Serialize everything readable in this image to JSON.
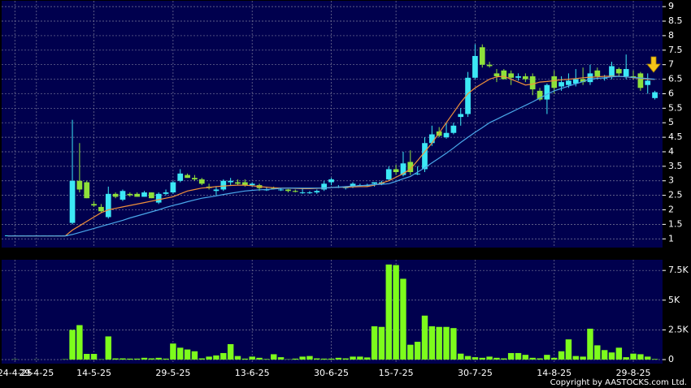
{
  "chart_data": [
    {
      "type": "candlestick",
      "categories": [
        null,
        "24-4-25",
        null,
        null,
        "29-4-25",
        null,
        null,
        null,
        null,
        null,
        null,
        null,
        "14-5-25",
        null,
        null,
        null,
        null,
        null,
        null,
        null,
        null,
        null,
        null,
        "29-5-25",
        null,
        null,
        null,
        null,
        null,
        null,
        null,
        null,
        null,
        null,
        "13-6-25",
        null,
        null,
        null,
        null,
        null,
        null,
        null,
        null,
        null,
        null,
        "30-6-25",
        null,
        null,
        null,
        null,
        null,
        null,
        null,
        null,
        "15-7-25",
        null,
        null,
        null,
        null,
        null,
        null,
        null,
        null,
        null,
        null,
        "30-7-25",
        null,
        null,
        null,
        null,
        null,
        null,
        null,
        null,
        null,
        null,
        "14-8-25",
        null,
        null,
        null,
        null,
        null,
        null,
        null,
        null,
        null,
        null,
        "29-8-25",
        null,
        null,
        null
      ],
      "open": [
        1.12,
        1.12,
        1.12,
        1.12,
        1.12,
        1.12,
        1.12,
        1.12,
        1.12,
        1.55,
        3.0,
        2.95,
        2.2,
        2.1,
        1.75,
        2.55,
        2.35,
        2.55,
        2.55,
        2.45,
        2.6,
        2.25,
        2.55,
        2.6,
        3.0,
        3.2,
        3.1,
        3.05,
        2.8,
        2.65,
        2.7,
        2.95,
        2.95,
        2.95,
        2.85,
        2.85,
        2.7,
        2.75,
        2.7,
        2.7,
        2.65,
        2.6,
        2.6,
        2.6,
        2.7,
        2.95,
        2.8,
        2.75,
        2.8,
        2.85,
        2.85,
        2.9,
        2.9,
        3.05,
        3.4,
        3.2,
        3.65,
        3.25,
        3.4,
        4.3,
        4.7,
        4.5,
        4.65,
        5.2,
        5.3,
        6.55,
        7.6,
        7.0,
        6.7,
        6.8,
        6.7,
        6.55,
        6.6,
        6.6,
        6.1,
        5.8,
        6.6,
        6.25,
        6.3,
        6.35,
        6.5,
        6.4,
        6.8,
        6.55,
        6.6,
        6.85,
        6.6,
        6.6,
        6.7,
        6.3,
        5.85
      ],
      "high": [
        1.12,
        1.12,
        1.12,
        1.12,
        1.12,
        1.12,
        1.12,
        1.12,
        1.12,
        5.1,
        4.3,
        3.0,
        2.3,
        2.2,
        2.8,
        2.6,
        2.7,
        2.6,
        2.6,
        2.65,
        2.6,
        2.6,
        2.7,
        3.0,
        3.4,
        3.25,
        3.2,
        3.1,
        2.9,
        2.8,
        3.05,
        3.1,
        3.05,
        3.05,
        2.95,
        2.9,
        2.8,
        2.8,
        2.75,
        2.72,
        2.7,
        2.75,
        2.65,
        2.7,
        3.0,
        3.1,
        2.85,
        2.8,
        2.95,
        2.9,
        2.9,
        2.95,
        3.0,
        3.5,
        3.55,
        4.0,
        4.05,
        3.5,
        4.5,
        4.9,
        4.85,
        5.0,
        5.0,
        5.5,
        6.75,
        7.7,
        7.7,
        7.1,
        6.85,
        6.85,
        6.8,
        6.7,
        6.7,
        6.7,
        6.2,
        6.35,
        6.8,
        6.6,
        6.7,
        6.85,
        6.9,
        7.0,
        6.9,
        6.65,
        7.1,
        6.9,
        7.35,
        6.8,
        6.75,
        6.7,
        6.1
      ],
      "low": [
        1.12,
        1.12,
        1.12,
        1.12,
        1.12,
        1.12,
        1.12,
        1.12,
        1.12,
        1.5,
        2.6,
        2.4,
        2.1,
        1.9,
        1.7,
        2.4,
        2.3,
        2.45,
        2.45,
        2.45,
        2.4,
        2.2,
        2.5,
        2.55,
        2.95,
        3.1,
        3.0,
        2.85,
        2.7,
        2.5,
        2.65,
        2.85,
        2.85,
        2.8,
        2.8,
        2.65,
        2.65,
        2.7,
        2.65,
        2.6,
        2.6,
        2.55,
        2.55,
        2.55,
        2.65,
        2.85,
        2.75,
        2.7,
        2.75,
        2.8,
        2.8,
        2.8,
        2.85,
        3.0,
        3.2,
        3.15,
        3.2,
        3.2,
        3.3,
        4.2,
        4.5,
        4.45,
        4.6,
        4.9,
        5.2,
        6.5,
        6.9,
        6.9,
        6.4,
        6.5,
        6.3,
        6.45,
        6.4,
        5.95,
        5.75,
        5.3,
        6.0,
        6.1,
        6.2,
        6.25,
        6.3,
        6.3,
        6.5,
        6.45,
        6.5,
        6.6,
        6.5,
        6.5,
        6.1,
        6.0,
        5.8
      ],
      "close": [
        1.12,
        1.12,
        1.12,
        1.12,
        1.12,
        1.12,
        1.12,
        1.12,
        1.12,
        3.0,
        2.7,
        2.4,
        2.15,
        1.95,
        2.55,
        2.45,
        2.65,
        2.5,
        2.45,
        2.6,
        2.4,
        2.55,
        2.6,
        2.95,
        3.25,
        3.1,
        3.05,
        2.9,
        2.75,
        2.7,
        3.0,
        3.0,
        2.9,
        2.85,
        2.9,
        2.75,
        2.7,
        2.72,
        2.7,
        2.65,
        2.62,
        2.6,
        2.6,
        2.65,
        2.9,
        3.05,
        2.8,
        2.8,
        2.9,
        2.85,
        2.85,
        2.95,
        2.95,
        3.4,
        3.3,
        3.6,
        3.3,
        3.25,
        4.3,
        4.6,
        4.55,
        4.65,
        4.9,
        5.3,
        6.55,
        7.3,
        7.0,
        6.95,
        6.6,
        6.5,
        6.55,
        6.6,
        6.5,
        6.15,
        5.8,
        6.3,
        6.2,
        6.4,
        6.45,
        6.5,
        6.4,
        6.7,
        6.6,
        6.55,
        6.95,
        6.7,
        6.85,
        6.55,
        6.2,
        6.45,
        6.05
      ],
      "up_color": "#3ce8f5",
      "down_color": "#8fe03a",
      "series": [
        {
          "color": "#f0903a",
          "values": [
            1.1,
            1.1,
            1.1,
            1.1,
            1.1,
            1.1,
            1.1,
            1.1,
            1.1,
            1.3,
            1.45,
            1.6,
            1.75,
            1.9,
            2.0,
            2.05,
            2.1,
            2.15,
            2.2,
            2.25,
            2.3,
            2.35,
            2.4,
            2.45,
            2.55,
            2.65,
            2.7,
            2.75,
            2.77,
            2.8,
            2.82,
            2.84,
            2.85,
            2.85,
            2.83,
            2.8,
            2.78,
            2.76,
            2.75,
            2.75,
            2.74,
            2.73,
            2.73,
            2.74,
            2.75,
            2.77,
            2.78,
            2.78,
            2.79,
            2.8,
            2.8,
            2.85,
            2.92,
            3.0,
            3.12,
            3.25,
            3.4,
            3.7,
            4.0,
            4.3,
            4.65,
            5.0,
            5.35,
            5.7,
            6.0,
            6.2,
            6.35,
            6.5,
            6.58,
            6.6,
            6.5,
            6.4,
            6.3,
            6.33,
            6.4,
            6.42,
            6.45,
            6.48,
            6.5,
            6.52,
            6.55,
            6.57,
            6.58,
            6.6,
            6.6,
            6.6,
            6.58,
            6.55,
            6.53,
            6.5,
            6.5
          ]
        },
        {
          "color": "#4aa8ea",
          "values": [
            1.1,
            1.1,
            1.1,
            1.1,
            1.1,
            1.1,
            1.1,
            1.1,
            1.1,
            1.15,
            1.22,
            1.29,
            1.36,
            1.43,
            1.5,
            1.57,
            1.64,
            1.72,
            1.79,
            1.86,
            1.93,
            2.0,
            2.08,
            2.15,
            2.21,
            2.28,
            2.34,
            2.4,
            2.44,
            2.48,
            2.53,
            2.57,
            2.61,
            2.65,
            2.67,
            2.69,
            2.7,
            2.72,
            2.74,
            2.75,
            2.75,
            2.75,
            2.75,
            2.75,
            2.75,
            2.77,
            2.78,
            2.8,
            2.82,
            2.83,
            2.85,
            2.87,
            2.88,
            2.9,
            2.98,
            3.07,
            3.15,
            3.3,
            3.45,
            3.62,
            3.78,
            3.95,
            4.13,
            4.32,
            4.5,
            4.67,
            4.83,
            5.0,
            5.12,
            5.24,
            5.36,
            5.48,
            5.6,
            5.72,
            5.85,
            5.98,
            6.1,
            6.18,
            6.26,
            6.34,
            6.42,
            6.5,
            6.53,
            6.55,
            6.58,
            6.6,
            6.58,
            6.56,
            6.54,
            6.52,
            6.5
          ]
        }
      ],
      "ylim": [
        0.7,
        9.2
      ],
      "yticks": [
        1,
        1.5,
        2,
        2.5,
        3,
        3.5,
        4,
        4.5,
        5,
        5.5,
        6,
        6.5,
        7,
        7.5,
        8,
        8.5,
        9
      ],
      "grid": true
    },
    {
      "type": "bar",
      "color": "#7dfc1c",
      "values": [
        0,
        20,
        0,
        0,
        10,
        0,
        0,
        0,
        30,
        2500,
        2900,
        480,
        480,
        30,
        1950,
        100,
        100,
        80,
        80,
        150,
        100,
        150,
        80,
        1350,
        1000,
        850,
        700,
        100,
        250,
        350,
        550,
        1300,
        300,
        80,
        250,
        150,
        50,
        450,
        200,
        30,
        80,
        250,
        300,
        100,
        80,
        80,
        150,
        100,
        250,
        250,
        180,
        2800,
        2750,
        8000,
        7950,
        6800,
        1250,
        1500,
        3700,
        2800,
        2750,
        2750,
        2650,
        500,
        300,
        200,
        150,
        250,
        150,
        100,
        550,
        550,
        400,
        150,
        100,
        400,
        150,
        700,
        1700,
        300,
        250,
        2600,
        1200,
        800,
        600,
        1000,
        200,
        500,
        450,
        250,
        50
      ],
      "ylim": [
        0,
        8400
      ],
      "yticks": [
        0,
        {
          "value": 2500,
          "label": "2.5K"
        },
        {
          "value": 5000,
          "label": "5K"
        },
        {
          "value": 7500,
          "label": "7.5K"
        }
      ],
      "grid": true
    }
  ],
  "footer": "Copyright by AASTOCKS.com Ltd."
}
